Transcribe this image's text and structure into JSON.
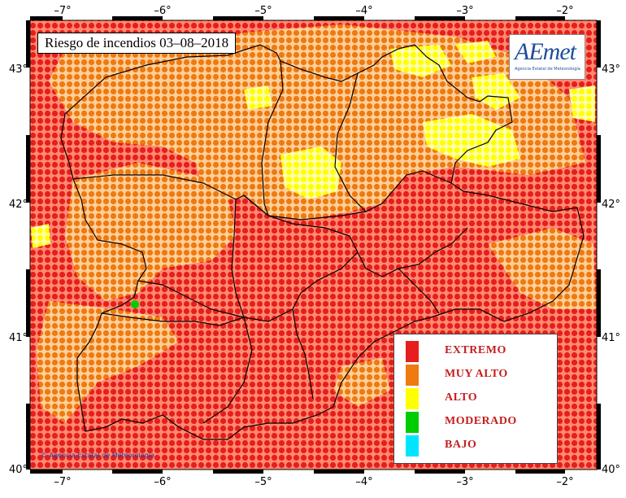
{
  "map": {
    "title": "Riesgo de incendios 03–08–2018",
    "longitude_ticks": [
      "–7°",
      "–6°",
      "–5°",
      "–4°",
      "–3°",
      "–2°"
    ],
    "latitude_ticks": [
      "43°",
      "42°",
      "41°",
      "40°"
    ],
    "logo_text": "AEmet",
    "logo_subtitle": "Agencia Estatal de Meteorología",
    "credit": "© Agencia Estatal de Meteorología"
  },
  "legend": {
    "items": [
      {
        "label": "EXTREMO",
        "color": "#e61e1e"
      },
      {
        "label": "MUY ALTO",
        "color": "#ee7a10"
      },
      {
        "label": "ALTO",
        "color": "#ffff00"
      },
      {
        "label": "MODERADO",
        "color": "#00cc00"
      },
      {
        "label": "BAJO",
        "color": "#00e5ff"
      }
    ]
  },
  "colors": {
    "extremo": "#e61e1e",
    "muy_alto": "#ee7a10",
    "alto": "#ffff00",
    "moderado": "#00cc00",
    "background_grid": "#ffd2b0",
    "frame": "#000000"
  }
}
